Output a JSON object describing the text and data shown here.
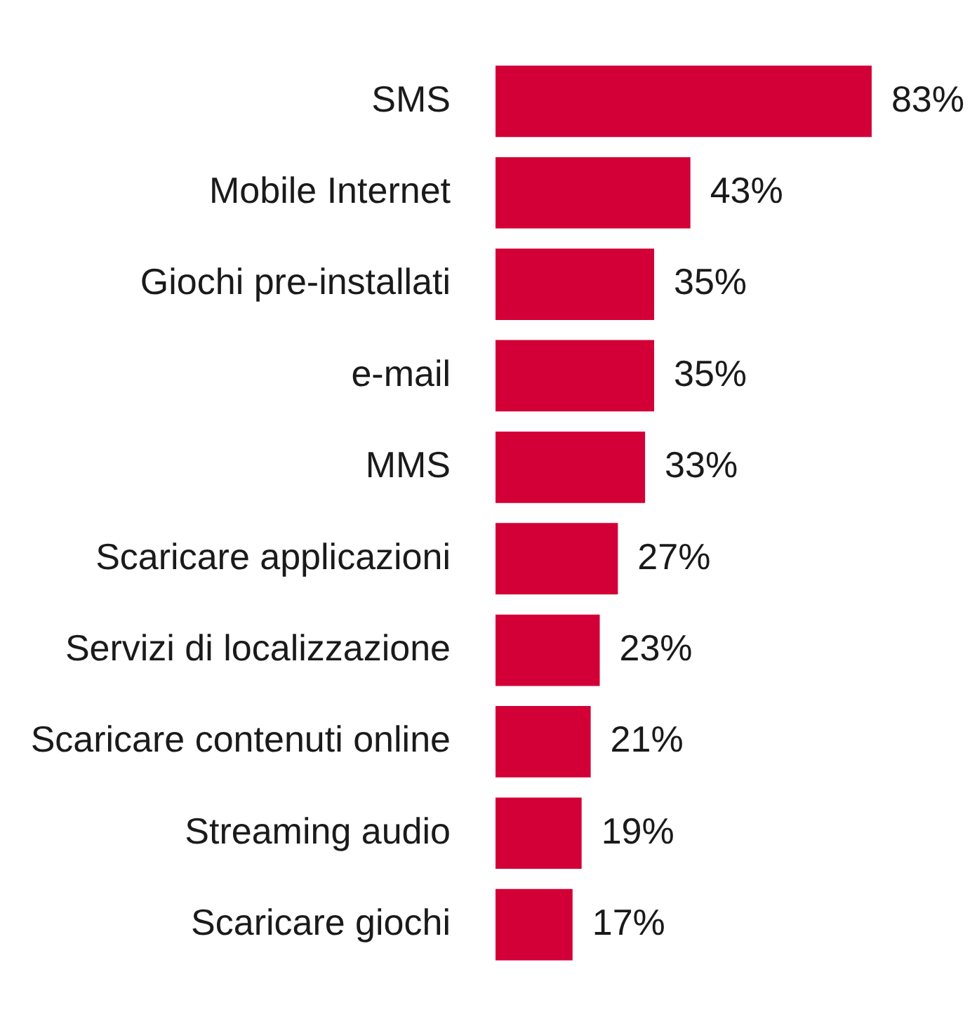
{
  "chart_data": {
    "type": "bar",
    "orientation": "horizontal",
    "categories": [
      "SMS",
      "Mobile Internet",
      "Giochi pre-installati",
      "e-mail",
      "MMS",
      "Scaricare applicazioni",
      "Servizi di localizzazione",
      "Scaricare contenuti online",
      "Streaming audio",
      "Scaricare giochi"
    ],
    "values": [
      83,
      43,
      35,
      35,
      33,
      27,
      23,
      21,
      19,
      17
    ],
    "value_labels": [
      "83%",
      "43%",
      "35%",
      "35%",
      "33%",
      "27%",
      "23%",
      "21%",
      "19%",
      "17%"
    ],
    "color": "#d20037",
    "legend": false,
    "tick_labels": "y"
  }
}
